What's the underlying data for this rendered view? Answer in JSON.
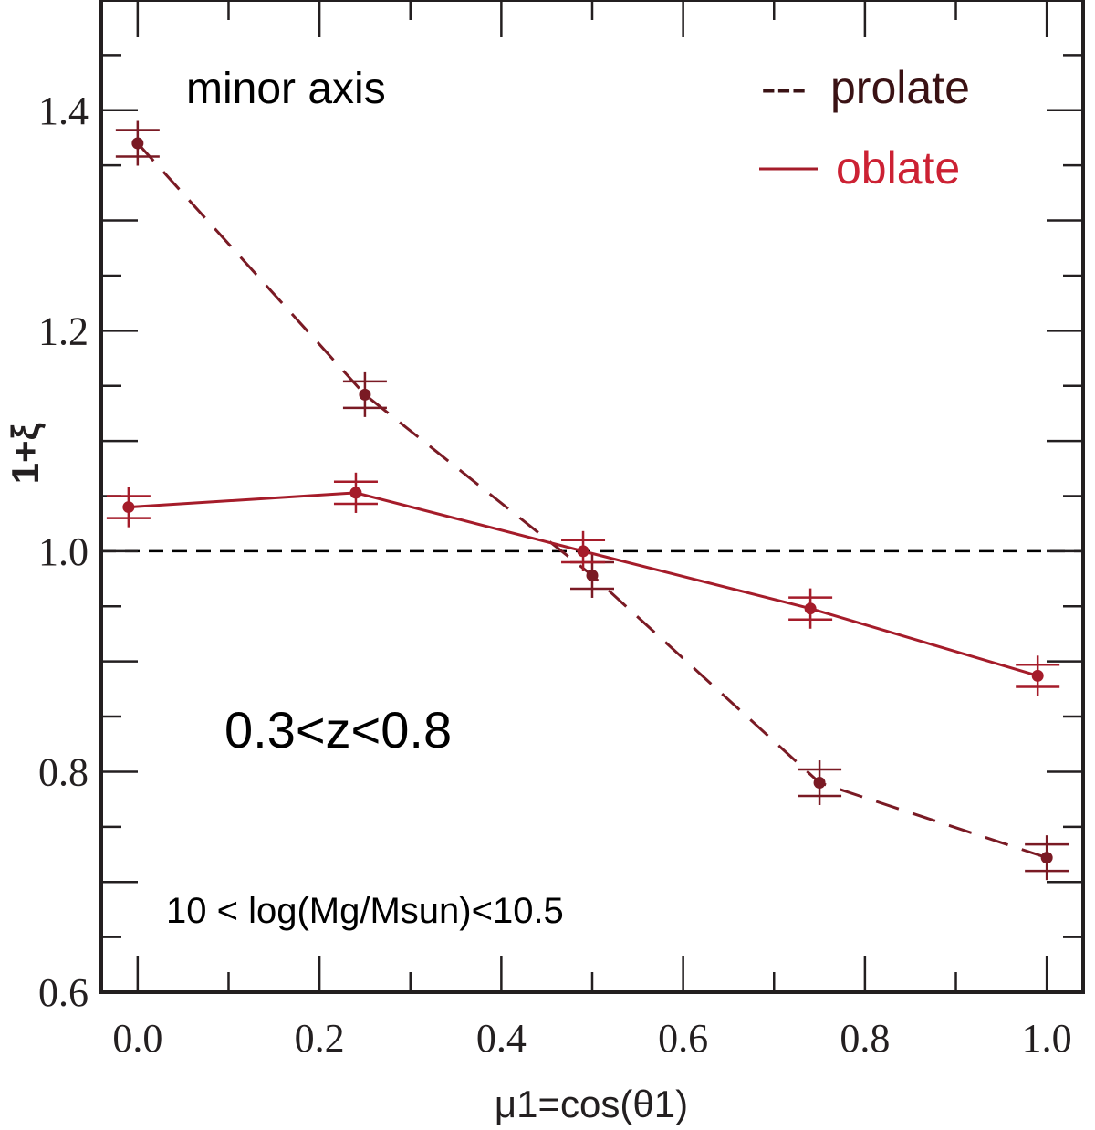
{
  "chart_data": {
    "type": "line",
    "title": "",
    "xlabel": "μ1=cos(θ1)",
    "ylabel": "1+ξ",
    "xlim": [
      -0.04,
      1.04
    ],
    "ylim": [
      0.6,
      1.5
    ],
    "xticks": [
      0.0,
      0.2,
      0.4,
      0.6,
      0.8,
      1.0
    ],
    "xtick_labels": [
      "0.0",
      "0.2",
      "0.4",
      "0.6",
      "0.8",
      "1.0"
    ],
    "yticks": [
      0.6,
      0.8,
      1.0,
      1.2,
      1.4
    ],
    "ytick_labels": [
      "0.6",
      "0.8",
      "1.0",
      "1.2",
      "1.4"
    ],
    "reference_line": {
      "y": 1.0,
      "style": "dashed",
      "color": "#000000"
    },
    "series": [
      {
        "name": "prolate",
        "style": "dashed",
        "color": "#7a1a24",
        "legend_text_color": "#3a1214",
        "x": [
          0.0,
          0.25,
          0.5,
          0.75,
          1.0
        ],
        "y": [
          1.37,
          1.142,
          0.978,
          0.79,
          0.722
        ],
        "yerr": [
          0.012,
          0.012,
          0.012,
          0.012,
          0.012
        ]
      },
      {
        "name": "oblate",
        "style": "solid",
        "color": "#a51c2a",
        "legend_text_color": "#cc2133",
        "x": [
          -0.01,
          0.24,
          0.49,
          0.74,
          0.99
        ],
        "y": [
          1.04,
          1.053,
          1.0,
          0.948,
          0.887
        ],
        "yerr": [
          0.01,
          0.01,
          0.01,
          0.01,
          0.01
        ]
      }
    ],
    "annotations": {
      "panel_title": "minor axis",
      "redshift": "0.3<z<0.8",
      "mass": "10 < log(Mg/Msun)<10.5"
    },
    "legend": {
      "placement": "top-right",
      "entries": [
        "prolate",
        "oblate"
      ],
      "prolate_marker": "---",
      "oblate_marker": "—"
    }
  }
}
